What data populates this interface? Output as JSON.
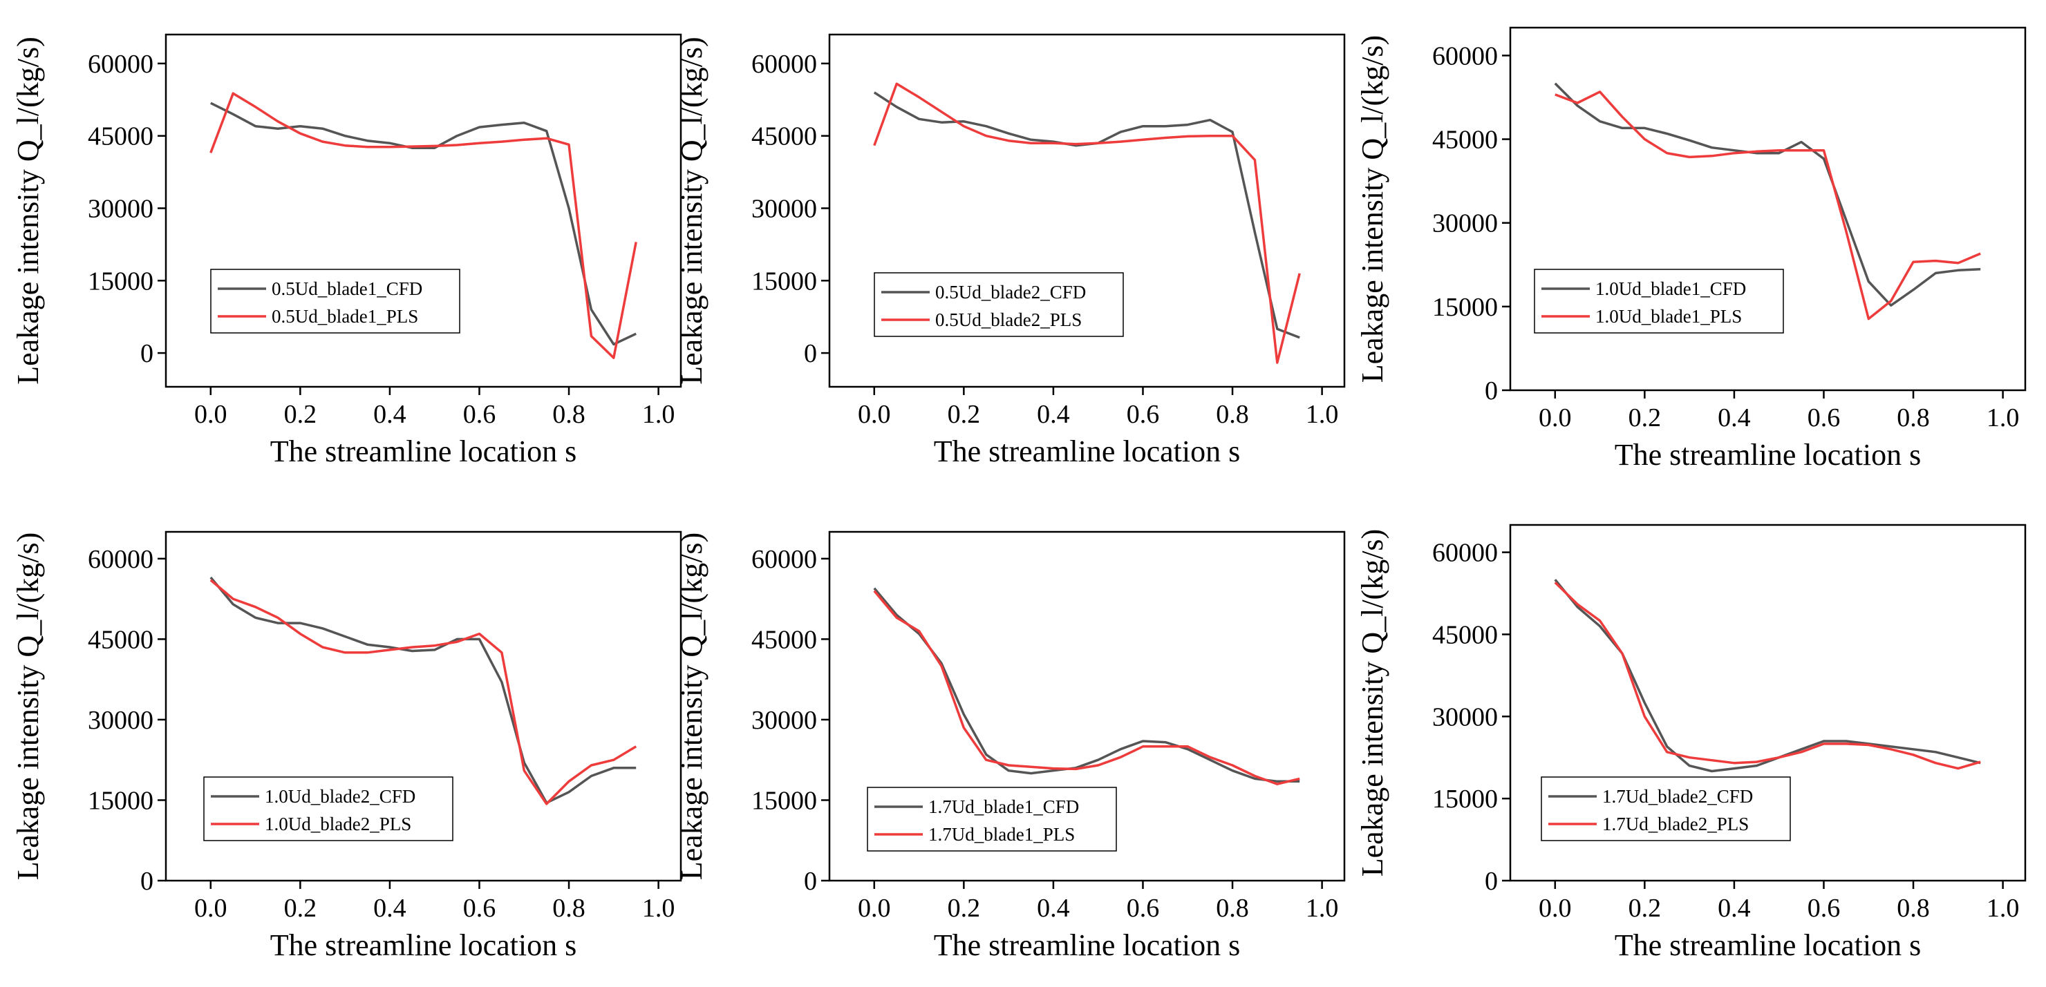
{
  "colors": {
    "cfd": "#555555",
    "pls": "#ee3b3b",
    "axis": "#000000",
    "background": "#ffffff"
  },
  "chart_data": [
    {
      "type": "line",
      "xlabel": "The streamline location s",
      "ylabel": "Leakage intensity Q_l/(kg/s)",
      "xlim": [
        -0.1,
        1.05
      ],
      "ylim": [
        -7000,
        66000
      ],
      "xticks": [
        0.0,
        0.2,
        0.4,
        0.6,
        0.8,
        1.0
      ],
      "xtick_labels": [
        "0.0",
        "0.2",
        "0.4",
        "0.6",
        "0.8",
        "1.0"
      ],
      "yticks": [
        0,
        15000,
        30000,
        45000,
        60000
      ],
      "ytick_labels": [
        "0",
        "15000",
        "30000",
        "45000",
        "60000"
      ],
      "legend_position": "lower-left",
      "series": [
        {
          "name": "0.5Ud_blade1_CFD",
          "x": [
            0.0,
            0.05,
            0.1,
            0.15,
            0.2,
            0.25,
            0.3,
            0.35,
            0.4,
            0.45,
            0.5,
            0.55,
            0.6,
            0.65,
            0.7,
            0.75,
            0.8,
            0.85,
            0.9,
            0.95
          ],
          "values": [
            51800,
            49500,
            47000,
            46500,
            47000,
            46500,
            45000,
            44000,
            43500,
            42500,
            42500,
            45000,
            46800,
            47300,
            47700,
            46000,
            30000,
            9000,
            1800,
            4000
          ]
        },
        {
          "name": "0.5Ud_blade1_PLS",
          "x": [
            0.0,
            0.05,
            0.1,
            0.15,
            0.2,
            0.25,
            0.3,
            0.35,
            0.4,
            0.45,
            0.5,
            0.55,
            0.6,
            0.65,
            0.7,
            0.75,
            0.8,
            0.85,
            0.9,
            0.95
          ],
          "values": [
            41500,
            53800,
            51000,
            48000,
            45500,
            43800,
            43000,
            42700,
            42700,
            42800,
            42900,
            43100,
            43500,
            43800,
            44200,
            44500,
            43200,
            3500,
            -1000,
            23000
          ]
        }
      ]
    },
    {
      "type": "line",
      "xlabel": "The streamline location s",
      "ylabel": "Leakage intensity Q_l/(kg/s)",
      "xlim": [
        -0.1,
        1.05
      ],
      "ylim": [
        -7000,
        66000
      ],
      "xticks": [
        0.0,
        0.2,
        0.4,
        0.6,
        0.8,
        1.0
      ],
      "xtick_labels": [
        "0.0",
        "0.2",
        "0.4",
        "0.6",
        "0.8",
        "1.0"
      ],
      "yticks": [
        0,
        15000,
        30000,
        45000,
        60000
      ],
      "ytick_labels": [
        "0",
        "15000",
        "30000",
        "45000",
        "60000"
      ],
      "legend_position": "lower-left",
      "series": [
        {
          "name": "0.5Ud_blade2_CFD",
          "x": [
            0.0,
            0.05,
            0.1,
            0.15,
            0.2,
            0.25,
            0.3,
            0.35,
            0.4,
            0.45,
            0.5,
            0.55,
            0.6,
            0.65,
            0.7,
            0.75,
            0.8,
            0.85,
            0.9,
            0.95
          ],
          "values": [
            54000,
            51000,
            48500,
            47800,
            48000,
            47000,
            45500,
            44200,
            43800,
            43000,
            43500,
            45800,
            47000,
            47000,
            47300,
            48300,
            45800,
            25000,
            5000,
            3200
          ]
        },
        {
          "name": "0.5Ud_blade2_PLS",
          "x": [
            0.0,
            0.05,
            0.1,
            0.15,
            0.2,
            0.25,
            0.3,
            0.35,
            0.4,
            0.45,
            0.5,
            0.55,
            0.6,
            0.65,
            0.7,
            0.75,
            0.8,
            0.85,
            0.9,
            0.95
          ],
          "values": [
            43000,
            55800,
            53000,
            50000,
            47000,
            45000,
            44000,
            43500,
            43500,
            43300,
            43500,
            43800,
            44200,
            44600,
            44900,
            45000,
            45000,
            40000,
            -2000,
            16500
          ]
        }
      ]
    },
    {
      "type": "line",
      "xlabel": "The streamline location s",
      "ylabel": "Leakage intensity Q_l/(kg/s)",
      "xlim": [
        -0.1,
        1.05
      ],
      "ylim": [
        0,
        65000
      ],
      "xticks": [
        0.0,
        0.2,
        0.4,
        0.6,
        0.8,
        1.0
      ],
      "xtick_labels": [
        "0.0",
        "0.2",
        "0.4",
        "0.6",
        "0.8",
        "1.0"
      ],
      "yticks": [
        0,
        15000,
        30000,
        45000,
        60000
      ],
      "ytick_labels": [
        "0",
        "15000",
        "30000",
        "45000",
        "60000"
      ],
      "legend_position": "lower-left",
      "series": [
        {
          "name": "1.0Ud_blade1_CFD",
          "x": [
            0.0,
            0.05,
            0.1,
            0.15,
            0.2,
            0.25,
            0.3,
            0.35,
            0.4,
            0.45,
            0.5,
            0.55,
            0.6,
            0.65,
            0.7,
            0.75,
            0.8,
            0.85,
            0.9,
            0.95
          ],
          "values": [
            55000,
            51000,
            48200,
            47000,
            47000,
            46000,
            44800,
            43500,
            43000,
            42500,
            42500,
            44500,
            41500,
            30500,
            19500,
            15200,
            18000,
            21000,
            21500,
            21700
          ]
        },
        {
          "name": "1.0Ud_blade1_PLS",
          "x": [
            0.0,
            0.05,
            0.1,
            0.15,
            0.2,
            0.25,
            0.3,
            0.35,
            0.4,
            0.45,
            0.5,
            0.55,
            0.6,
            0.65,
            0.7,
            0.75,
            0.8,
            0.85,
            0.9,
            0.95
          ],
          "values": [
            53000,
            51500,
            53500,
            49000,
            45000,
            42500,
            41800,
            42000,
            42500,
            42800,
            43000,
            43000,
            43000,
            28500,
            12800,
            16000,
            23000,
            23200,
            22800,
            24500
          ]
        }
      ]
    },
    {
      "type": "line",
      "xlabel": "The streamline location s",
      "ylabel": "Leakage intensity Q_l/(kg/s)",
      "xlim": [
        -0.1,
        1.05
      ],
      "ylim": [
        0,
        65000
      ],
      "xticks": [
        0.0,
        0.2,
        0.4,
        0.6,
        0.8,
        1.0
      ],
      "xtick_labels": [
        "0.0",
        "0.2",
        "0.4",
        "0.6",
        "0.8",
        "1.0"
      ],
      "yticks": [
        0,
        15000,
        30000,
        45000,
        60000
      ],
      "ytick_labels": [
        "0",
        "15000",
        "30000",
        "45000",
        "60000"
      ],
      "legend_position": "lower-left",
      "series": [
        {
          "name": "1.0Ud_blade2_CFD",
          "x": [
            0.0,
            0.05,
            0.1,
            0.15,
            0.2,
            0.25,
            0.3,
            0.35,
            0.4,
            0.45,
            0.5,
            0.55,
            0.6,
            0.65,
            0.7,
            0.75,
            0.8,
            0.85,
            0.9,
            0.95
          ],
          "values": [
            56500,
            51500,
            49000,
            48000,
            48000,
            47000,
            45500,
            44000,
            43500,
            42800,
            43000,
            45000,
            45000,
            37000,
            22000,
            14500,
            16500,
            19500,
            21000,
            21000
          ]
        },
        {
          "name": "1.0Ud_blade2_PLS",
          "x": [
            0.0,
            0.05,
            0.1,
            0.15,
            0.2,
            0.25,
            0.3,
            0.35,
            0.4,
            0.45,
            0.5,
            0.55,
            0.6,
            0.65,
            0.7,
            0.75,
            0.8,
            0.85,
            0.9,
            0.95
          ],
          "values": [
            56000,
            52500,
            51000,
            49000,
            46000,
            43500,
            42500,
            42500,
            43000,
            43500,
            43800,
            44500,
            46000,
            42500,
            20500,
            14300,
            18500,
            21500,
            22500,
            25000
          ]
        }
      ]
    },
    {
      "type": "line",
      "xlabel": "The streamline location s",
      "ylabel": "Leakage intensity Q_l/(kg/s)",
      "xlim": [
        -0.1,
        1.05
      ],
      "ylim": [
        0,
        65000
      ],
      "xticks": [
        0.0,
        0.2,
        0.4,
        0.6,
        0.8,
        1.0
      ],
      "xtick_labels": [
        "0.0",
        "0.2",
        "0.4",
        "0.6",
        "0.8",
        "1.0"
      ],
      "yticks": [
        0,
        15000,
        30000,
        45000,
        60000
      ],
      "ytick_labels": [
        "0",
        "15000",
        "30000",
        "45000",
        "60000"
      ],
      "legend_position": "lower-left",
      "series": [
        {
          "name": "1.7Ud_blade1_CFD",
          "x": [
            0.0,
            0.05,
            0.1,
            0.15,
            0.2,
            0.25,
            0.3,
            0.35,
            0.4,
            0.45,
            0.5,
            0.55,
            0.6,
            0.65,
            0.7,
            0.75,
            0.8,
            0.85,
            0.9,
            0.95
          ],
          "values": [
            54500,
            49500,
            46000,
            40500,
            31000,
            23500,
            20500,
            20000,
            20500,
            21000,
            22500,
            24500,
            26000,
            25800,
            24500,
            22500,
            20500,
            19000,
            18500,
            18500
          ]
        },
        {
          "name": "1.7Ud_blade1_PLS",
          "x": [
            0.0,
            0.05,
            0.1,
            0.15,
            0.2,
            0.25,
            0.3,
            0.35,
            0.4,
            0.45,
            0.5,
            0.55,
            0.6,
            0.65,
            0.7,
            0.75,
            0.8,
            0.85,
            0.9,
            0.95
          ],
          "values": [
            54000,
            49000,
            46500,
            40000,
            28500,
            22500,
            21500,
            21200,
            20900,
            20800,
            21500,
            23000,
            25000,
            25000,
            25000,
            23000,
            21500,
            19500,
            18000,
            19000
          ]
        }
      ]
    },
    {
      "type": "line",
      "xlabel": "The streamline location s",
      "ylabel": "Leakage intensity Q_l/(kg/s)",
      "xlim": [
        -0.1,
        1.05
      ],
      "ylim": [
        0,
        65000
      ],
      "xticks": [
        0.0,
        0.2,
        0.4,
        0.6,
        0.8,
        1.0
      ],
      "xtick_labels": [
        "0.0",
        "0.2",
        "0.4",
        "0.6",
        "0.8",
        "1.0"
      ],
      "yticks": [
        0,
        15000,
        30000,
        45000,
        60000
      ],
      "ytick_labels": [
        "0",
        "15000",
        "30000",
        "45000",
        "60000"
      ],
      "legend_position": "lower-left",
      "series": [
        {
          "name": "1.7Ud_blade2_CFD",
          "x": [
            0.0,
            0.05,
            0.1,
            0.15,
            0.2,
            0.25,
            0.3,
            0.35,
            0.4,
            0.45,
            0.5,
            0.55,
            0.6,
            0.65,
            0.7,
            0.75,
            0.8,
            0.85,
            0.9,
            0.95
          ],
          "values": [
            55000,
            50000,
            46500,
            41500,
            32500,
            24500,
            21000,
            20000,
            20500,
            21000,
            22500,
            24000,
            25500,
            25500,
            25000,
            24500,
            24000,
            23500,
            22500,
            21500
          ]
        },
        {
          "name": "1.7Ud_blade2_PLS",
          "x": [
            0.0,
            0.05,
            0.1,
            0.15,
            0.2,
            0.25,
            0.3,
            0.35,
            0.4,
            0.45,
            0.5,
            0.55,
            0.6,
            0.65,
            0.7,
            0.75,
            0.8,
            0.85,
            0.9,
            0.95
          ],
          "values": [
            54500,
            50500,
            47500,
            41500,
            30000,
            23500,
            22500,
            22000,
            21500,
            21700,
            22500,
            23500,
            25000,
            25000,
            24800,
            24000,
            23000,
            21500,
            20500,
            21700
          ]
        }
      ]
    }
  ]
}
